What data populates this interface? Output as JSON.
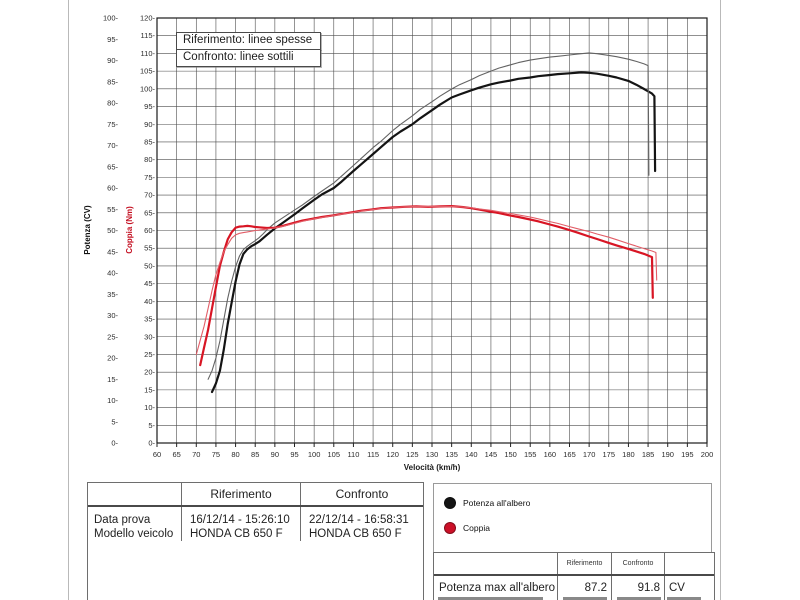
{
  "chart_data": {
    "type": "line",
    "x_axis": {
      "label": "Velocità (km/h)",
      "min": 60,
      "max": 200,
      "step": 5,
      "grid": true
    },
    "y_axis_power": {
      "label": "Potenza (CV)",
      "min": 0,
      "max": 100,
      "step": 5,
      "color": "#111111"
    },
    "y_axis_torque": {
      "label": "Coppia (Nm)",
      "min": 0,
      "max": 120,
      "step": 5,
      "color": "#c41022",
      "grid": true
    },
    "legend_box": {
      "line1": "Riferimento: linee spesse",
      "line2": "Confronto: linee sottili"
    },
    "grid_color": "#4d4d4d",
    "border_color": "#1a1a1a",
    "series": [
      {
        "name": "Potenza all'albero - Riferimento (linea spessa)",
        "axis": "power",
        "color": "#141414",
        "width": 2.2,
        "points": [
          [
            74,
            12
          ],
          [
            75,
            14
          ],
          [
            76,
            17
          ],
          [
            77,
            22
          ],
          [
            78,
            28
          ],
          [
            79,
            33
          ],
          [
            80,
            38
          ],
          [
            81,
            42
          ],
          [
            82,
            44.5
          ],
          [
            83,
            45.6
          ],
          [
            84,
            46.3
          ],
          [
            85,
            46.8
          ],
          [
            86,
            47.4
          ],
          [
            87,
            48.2
          ],
          [
            88,
            49
          ],
          [
            90,
            50.5
          ],
          [
            92,
            51.8
          ],
          [
            95,
            53.8
          ],
          [
            97,
            55.2
          ],
          [
            100,
            57.2
          ],
          [
            102,
            58.5
          ],
          [
            105,
            60
          ],
          [
            107,
            61.5
          ],
          [
            110,
            64
          ],
          [
            112,
            65.6
          ],
          [
            115,
            68
          ],
          [
            117,
            69.6
          ],
          [
            120,
            72
          ],
          [
            122,
            73.3
          ],
          [
            125,
            75
          ],
          [
            127,
            76.4
          ],
          [
            130,
            78.3
          ],
          [
            132,
            79.6
          ],
          [
            135,
            81.3
          ],
          [
            137,
            82
          ],
          [
            140,
            83
          ],
          [
            142,
            83.6
          ],
          [
            145,
            84.4
          ],
          [
            147,
            84.8
          ],
          [
            150,
            85.3
          ],
          [
            152,
            85.7
          ],
          [
            155,
            86
          ],
          [
            157,
            86.3
          ],
          [
            160,
            86.6
          ],
          [
            162,
            86.8
          ],
          [
            165,
            87
          ],
          [
            168,
            87.2
          ],
          [
            170,
            87.1
          ],
          [
            172,
            86.9
          ],
          [
            175,
            86.4
          ],
          [
            177,
            86
          ],
          [
            180,
            85.2
          ],
          [
            182,
            84.3
          ],
          [
            184,
            83.3
          ],
          [
            186,
            82.2
          ],
          [
            186.6,
            81.6
          ],
          [
            186.8,
            64
          ]
        ]
      },
      {
        "name": "Potenza all'albero - Confronto (linea sottile)",
        "axis": "power",
        "color": "#636363",
        "width": 1.1,
        "points": [
          [
            73,
            15
          ],
          [
            74,
            17
          ],
          [
            75,
            20
          ],
          [
            76,
            24
          ],
          [
            77,
            29
          ],
          [
            78,
            34
          ],
          [
            79,
            38
          ],
          [
            80,
            41.5
          ],
          [
            81,
            44
          ],
          [
            82,
            45.5
          ],
          [
            83,
            46.3
          ],
          [
            84,
            47
          ],
          [
            85,
            47.6
          ],
          [
            86,
            48.3
          ],
          [
            87,
            49.2
          ],
          [
            88,
            50.2
          ],
          [
            90,
            51.8
          ],
          [
            92,
            53
          ],
          [
            95,
            54.8
          ],
          [
            97,
            56
          ],
          [
            100,
            58
          ],
          [
            102,
            59.3
          ],
          [
            105,
            61.2
          ],
          [
            107,
            62.8
          ],
          [
            110,
            65.3
          ],
          [
            112,
            67
          ],
          [
            115,
            69.5
          ],
          [
            117,
            71
          ],
          [
            120,
            73.5
          ],
          [
            122,
            75
          ],
          [
            125,
            77
          ],
          [
            127,
            78.5
          ],
          [
            130,
            80.3
          ],
          [
            132,
            81.6
          ],
          [
            135,
            83.3
          ],
          [
            137,
            84.3
          ],
          [
            140,
            85.5
          ],
          [
            142,
            86.4
          ],
          [
            145,
            87.5
          ],
          [
            147,
            88.2
          ],
          [
            150,
            89
          ],
          [
            152,
            89.5
          ],
          [
            155,
            90.1
          ],
          [
            157,
            90.4
          ],
          [
            160,
            90.8
          ],
          [
            162,
            91
          ],
          [
            165,
            91.3
          ],
          [
            167,
            91.5
          ],
          [
            170,
            91.8
          ],
          [
            172,
            91.6
          ],
          [
            175,
            91.2
          ],
          [
            177,
            90.9
          ],
          [
            180,
            90.3
          ],
          [
            182,
            89.8
          ],
          [
            184,
            89.2
          ],
          [
            185,
            88.8
          ],
          [
            185.2,
            63
          ]
        ]
      },
      {
        "name": "Coppia - Riferimento (linea spessa)",
        "axis": "torque",
        "color": "#d81524",
        "width": 2.2,
        "points": [
          [
            71,
            22
          ],
          [
            72,
            27
          ],
          [
            73,
            32
          ],
          [
            74,
            38
          ],
          [
            75,
            44
          ],
          [
            76,
            50
          ],
          [
            77,
            54
          ],
          [
            78,
            57.5
          ],
          [
            79,
            59.5
          ],
          [
            80,
            60.8
          ],
          [
            81,
            61.1
          ],
          [
            82,
            61.2
          ],
          [
            83,
            61.3
          ],
          [
            84,
            61.2
          ],
          [
            85,
            61
          ],
          [
            86,
            60.9
          ],
          [
            88,
            60.7
          ],
          [
            90,
            60.8
          ],
          [
            92,
            61.3
          ],
          [
            95,
            62.2
          ],
          [
            97,
            62.8
          ],
          [
            100,
            63.4
          ],
          [
            102,
            63.8
          ],
          [
            105,
            64.3
          ],
          [
            107,
            64.7
          ],
          [
            110,
            65.2
          ],
          [
            112,
            65.6
          ],
          [
            115,
            66
          ],
          [
            117,
            66.3
          ],
          [
            120,
            66.5
          ],
          [
            123,
            66.7
          ],
          [
            126,
            66.8
          ],
          [
            129,
            66.7
          ],
          [
            132,
            66.8
          ],
          [
            135,
            66.9
          ],
          [
            138,
            66.6
          ],
          [
            140,
            66.3
          ],
          [
            142,
            65.9
          ],
          [
            145,
            65.3
          ],
          [
            147,
            64.9
          ],
          [
            150,
            64.2
          ],
          [
            152,
            63.8
          ],
          [
            155,
            63.1
          ],
          [
            157,
            62.6
          ],
          [
            160,
            61.7
          ],
          [
            162,
            61.1
          ],
          [
            165,
            60.1
          ],
          [
            167,
            59.4
          ],
          [
            170,
            58.3
          ],
          [
            172,
            57.6
          ],
          [
            175,
            56.5
          ],
          [
            177,
            55.8
          ],
          [
            180,
            54.8
          ],
          [
            182,
            54.1
          ],
          [
            184,
            53.4
          ],
          [
            186,
            52.5
          ],
          [
            186.2,
            41
          ]
        ]
      },
      {
        "name": "Coppia - Confronto (linea sottile)",
        "axis": "torque",
        "color": "#e25e68",
        "width": 1.1,
        "points": [
          [
            70,
            25
          ],
          [
            71,
            29
          ],
          [
            72,
            33
          ],
          [
            73,
            38
          ],
          [
            74,
            43
          ],
          [
            75,
            47.5
          ],
          [
            76,
            51
          ],
          [
            77,
            54
          ],
          [
            78,
            56
          ],
          [
            79,
            57.8
          ],
          [
            80,
            58.8
          ],
          [
            81,
            59.2
          ],
          [
            82,
            59.4
          ],
          [
            83,
            59.6
          ],
          [
            84,
            59.8
          ],
          [
            85,
            60
          ],
          [
            86,
            60.1
          ],
          [
            88,
            60.4
          ],
          [
            90,
            60.7
          ],
          [
            92,
            61.2
          ],
          [
            95,
            62
          ],
          [
            97,
            62.6
          ],
          [
            100,
            63.3
          ],
          [
            102,
            63.7
          ],
          [
            105,
            64.2
          ],
          [
            107,
            64.6
          ],
          [
            110,
            65.1
          ],
          [
            112,
            65.5
          ],
          [
            115,
            65.9
          ],
          [
            117,
            66.2
          ],
          [
            120,
            66.5
          ],
          [
            123,
            66.7
          ],
          [
            126,
            66.8
          ],
          [
            129,
            66.8
          ],
          [
            132,
            66.8
          ],
          [
            135,
            66.8
          ],
          [
            138,
            66.6
          ],
          [
            140,
            66.4
          ],
          [
            142,
            66.1
          ],
          [
            145,
            65.7
          ],
          [
            147,
            65.3
          ],
          [
            150,
            64.8
          ],
          [
            152,
            64.4
          ],
          [
            155,
            63.8
          ],
          [
            157,
            63.3
          ],
          [
            160,
            62.5
          ],
          [
            162,
            62
          ],
          [
            165,
            61.1
          ],
          [
            167,
            60.5
          ],
          [
            170,
            59.7
          ],
          [
            172,
            59
          ],
          [
            175,
            58.1
          ],
          [
            177,
            57.4
          ],
          [
            180,
            56.3
          ],
          [
            182,
            55.6
          ],
          [
            184,
            54.9
          ],
          [
            186,
            54.2
          ],
          [
            187,
            53.8
          ],
          [
            187.2,
            46
          ]
        ]
      }
    ]
  },
  "info_table": {
    "headers": [
      "",
      "Riferimento",
      "Confronto"
    ],
    "row_labels": [
      "Data prova",
      "Modello veicolo"
    ],
    "riferimento": [
      "16/12/14 - 15:26:10",
      "HONDA CB 650 F"
    ],
    "confronto": [
      "22/12/14 - 16:58:31",
      "HONDA CB 650 F"
    ]
  },
  "series_legend": {
    "items": [
      {
        "label": "Potenza all'albero",
        "color": "#141414"
      },
      {
        "label": "Coppia",
        "color": "#cc1128"
      }
    ]
  },
  "results_table": {
    "headers": [
      "",
      "Riferimento",
      "Confronto",
      ""
    ],
    "rows": [
      {
        "label": "Potenza max all'albero",
        "riferimento": "87.2",
        "confronto": "91.8",
        "unit": "CV"
      }
    ],
    "partial_row_visible": true
  }
}
